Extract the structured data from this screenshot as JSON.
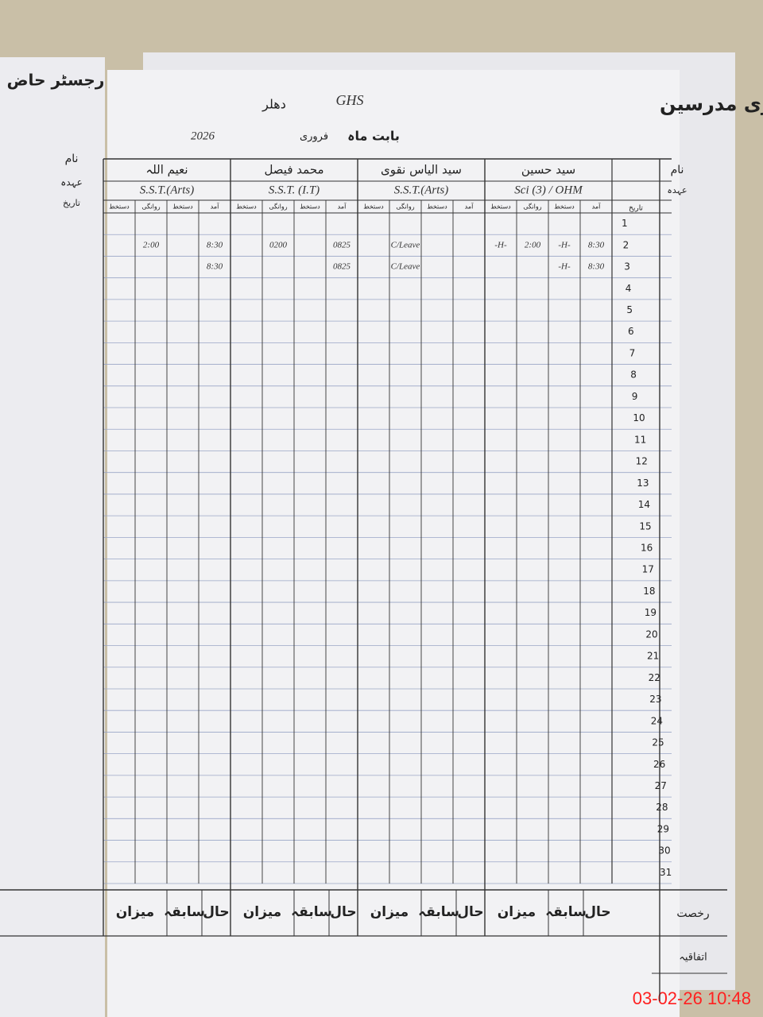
{
  "left_page": {
    "title": "رجسٹر حاض",
    "labels": [
      "نام",
      "عہدہ",
      "تاریخ"
    ]
  },
  "header": {
    "title": "رجسٹر حاضری مدرسین",
    "school": "GHS",
    "place": "دھلر",
    "month_label": "بابت ماہ",
    "month": "فروری",
    "year": "2026"
  },
  "labels": {
    "name": "نام",
    "designation": "عہدہ",
    "date": "تاریخ"
  },
  "subcolumns": [
    "آمد",
    "دستخط",
    "روانگی",
    "دستخط"
  ],
  "dates": [
    1,
    2,
    3,
    4,
    5,
    6,
    7,
    8,
    9,
    10,
    11,
    12,
    13,
    14,
    15,
    16,
    17,
    18,
    19,
    20,
    21,
    22,
    23,
    24,
    25,
    26,
    27,
    28,
    29,
    30,
    31
  ],
  "teachers": [
    {
      "name": "سید حسین",
      "designation": "Sci (3) / OHM",
      "entries": [
        null,
        [
          "8:30",
          "-H-",
          "2:00",
          "-H-"
        ],
        [
          "8:30",
          "-H-",
          null,
          null
        ]
      ]
    },
    {
      "name": "سید الیاس نقوی",
      "designation": "S.S.T.(Arts)",
      "entries": [
        null,
        [
          null,
          null,
          "C/Leave",
          null
        ],
        [
          null,
          null,
          "C/Leave",
          null
        ]
      ]
    },
    {
      "name": "محمد فیصل",
      "designation": "S.S.T. (I.T)",
      "entries": [
        null,
        [
          "0825",
          null,
          "0200",
          null
        ],
        [
          "0825",
          null,
          null,
          null
        ]
      ]
    },
    {
      "name": "نعیم اللہ",
      "designation": "S.S.T.(Arts)",
      "entries": [
        null,
        [
          "8:30",
          null,
          "2:00",
          null
        ],
        [
          "8:30",
          null,
          null,
          null
        ]
      ]
    }
  ],
  "footer": {
    "labels": [
      "حال",
      "سابقہ",
      "میزان"
    ],
    "leave": "رخصت",
    "casual": "اتفاقیہ"
  },
  "timestamp": "03-02-26 10:48"
}
